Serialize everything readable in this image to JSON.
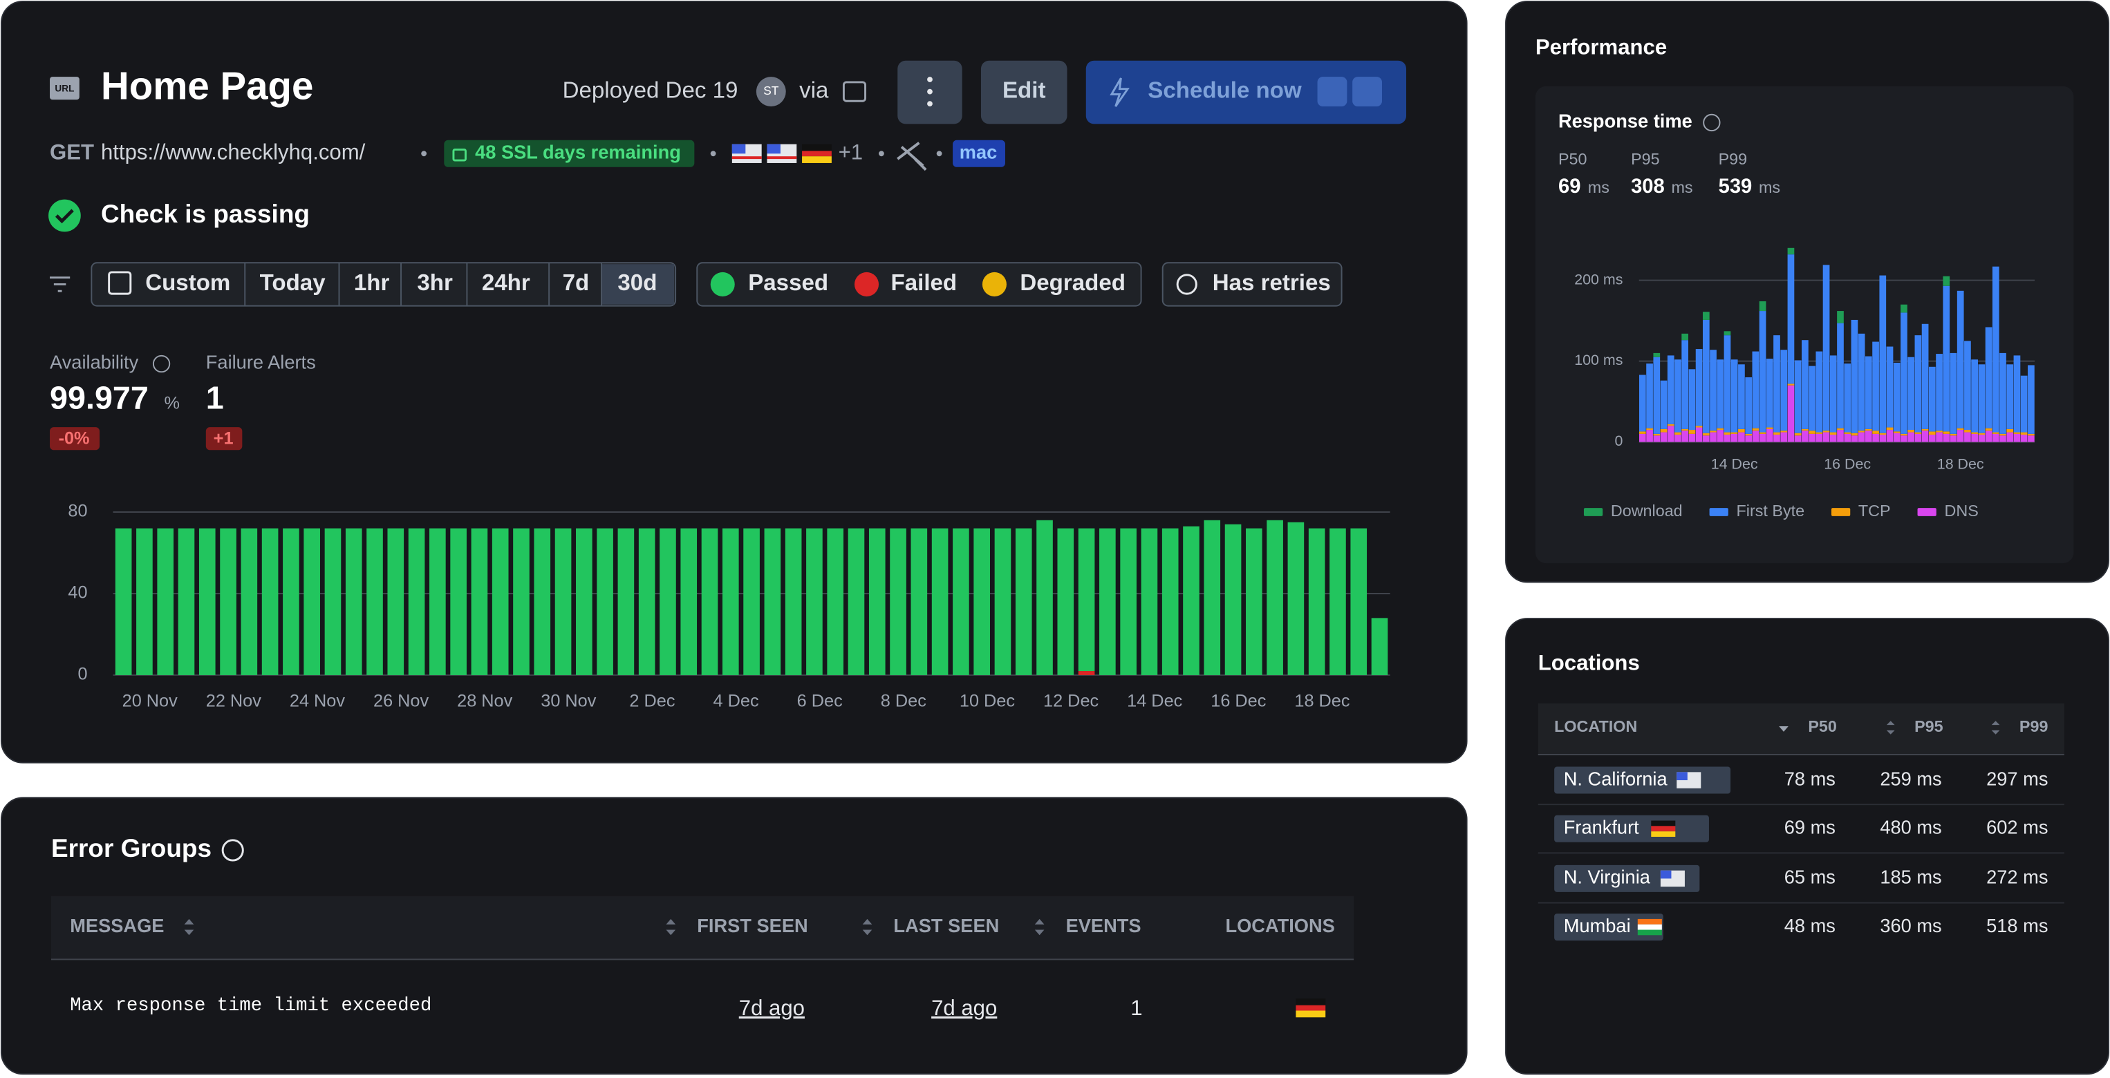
{
  "header": {
    "icon": "URL",
    "title": "Home Page",
    "deployed": "Deployed Dec 19",
    "avatar": "ST",
    "via": "via",
    "edit": "Edit",
    "schedule": "Schedule now"
  },
  "request": {
    "method": "GET",
    "url": "https://www.checklyhq.com/",
    "ssl": "48 SSL days remaining",
    "more_locations": "+1",
    "runtime": "mac"
  },
  "status": "Check is passing",
  "filters": {
    "ranges": [
      "Custom",
      "Today",
      "1hr",
      "3hr",
      "24hr",
      "7d",
      "30d"
    ],
    "results": [
      "Passed",
      "Failed",
      "Degraded"
    ],
    "retries": "Has retries"
  },
  "metrics": [
    {
      "label": "Availability",
      "value": "99.977",
      "unit": "%",
      "change": "-0%"
    },
    {
      "label": "Failure Alerts",
      "value": "1",
      "change": "+1"
    }
  ],
  "performance": {
    "title": "Performance",
    "stats": [
      {
        "label": "P50",
        "value": "69",
        "unit": "ms"
      },
      {
        "label": "P95",
        "value": "308",
        "unit": "ms"
      },
      {
        "label": "P99",
        "value": "539",
        "unit": "ms"
      }
    ]
  },
  "chart_data": [
    {
      "type": "bar",
      "stacked": true,
      "grid": true,
      "categories": [
        null,
        "20 Nov",
        null,
        null,
        null,
        "22 Nov",
        null,
        null,
        null,
        "24 Nov",
        null,
        null,
        null,
        "26 Nov",
        null,
        null,
        null,
        "28 Nov",
        null,
        null,
        null,
        "30 Nov",
        null,
        null,
        null,
        "2 Dec",
        null,
        null,
        null,
        "4 Dec",
        null,
        null,
        null,
        "6 Dec",
        null,
        null,
        null,
        "8 Dec",
        null,
        null,
        null,
        "10 Dec",
        null,
        null,
        null,
        "12 Dec",
        null,
        null,
        null,
        "14 Dec",
        null,
        null,
        null,
        "16 Dec",
        null,
        null,
        null,
        "18 Dec",
        null,
        null,
        null
      ],
      "series": [
        {
          "color": "#22c55e",
          "values": [
            72,
            72,
            72,
            72,
            72,
            72,
            72,
            72,
            72,
            72,
            72,
            72,
            72,
            72,
            72,
            72,
            72,
            72,
            72,
            72,
            72,
            72,
            72,
            72,
            72,
            72,
            72,
            72,
            72,
            72,
            72,
            72,
            72,
            72,
            72,
            72,
            72,
            72,
            72,
            72,
            72,
            72,
            72,
            72,
            76,
            72,
            70,
            72,
            72,
            72,
            72,
            73,
            76,
            74,
            72,
            76,
            75,
            72,
            72,
            72,
            28
          ]
        },
        {
          "color": "#dc2626",
          "values": [
            0,
            0,
            0,
            0,
            0,
            0,
            0,
            0,
            0,
            0,
            0,
            0,
            0,
            0,
            0,
            0,
            0,
            0,
            0,
            0,
            0,
            0,
            0,
            0,
            0,
            0,
            0,
            0,
            0,
            0,
            0,
            0,
            0,
            0,
            0,
            0,
            0,
            0,
            0,
            0,
            0,
            0,
            0,
            0,
            0,
            0,
            2,
            0,
            0,
            0,
            0,
            0,
            0,
            0,
            0,
            0,
            0,
            0,
            0,
            0,
            0
          ]
        }
      ],
      "ylim": [
        0,
        80
      ],
      "yticks": [
        0,
        40,
        80
      ]
    },
    {
      "type": "bar",
      "stacked": true,
      "grid": true,
      "legend": "bottom",
      "title": "Response time",
      "categories": [
        null,
        null,
        null,
        null,
        null,
        null,
        null,
        null,
        null,
        null,
        null,
        null,
        null,
        "14 Dec",
        null,
        null,
        null,
        null,
        null,
        null,
        null,
        null,
        null,
        null,
        null,
        null,
        null,
        null,
        null,
        "16 Dec",
        null,
        null,
        null,
        null,
        null,
        null,
        null,
        null,
        null,
        null,
        null,
        null,
        null,
        null,
        null,
        "18 Dec",
        null,
        null,
        null,
        null,
        null,
        null,
        null,
        null,
        null,
        null
      ],
      "series": [
        {
          "name": "Download",
          "color": "#1f9d55",
          "values": [
            0,
            0,
            5,
            0,
            0,
            0,
            8,
            0,
            0,
            10,
            0,
            0,
            5,
            0,
            0,
            0,
            0,
            12,
            0,
            0,
            0,
            8,
            0,
            0,
            0,
            0,
            0,
            0,
            15,
            0,
            0,
            0,
            0,
            0,
            0,
            0,
            0,
            10,
            0,
            0,
            0,
            0,
            0,
            12,
            0,
            0,
            0,
            0,
            0,
            0,
            0,
            0,
            0,
            0,
            0,
            0
          ]
        },
        {
          "name": "First Byte",
          "color": "#3b82f6",
          "values": [
            70,
            80,
            95,
            60,
            85,
            90,
            110,
            75,
            95,
            140,
            100,
            85,
            120,
            90,
            80,
            70,
            95,
            150,
            85,
            120,
            100,
            160,
            90,
            110,
            80,
            100,
            205,
            95,
            130,
            85,
            140,
            120,
            90,
            110,
            195,
            100,
            85,
            150,
            90,
            120,
            130,
            80,
            95,
            180,
            100,
            170,
            110,
            90,
            85,
            125,
            205,
            100,
            80,
            95,
            70,
            85
          ]
        },
        {
          "name": "TCP",
          "color": "#f59e0b",
          "values": [
            3,
            2,
            2,
            4,
            2,
            3,
            2,
            5,
            2,
            3,
            2,
            2,
            3,
            2,
            4,
            2,
            3,
            2,
            2,
            3,
            2,
            2,
            3,
            2,
            4,
            2,
            2,
            3,
            2,
            2,
            3,
            2,
            2,
            4,
            2,
            3,
            2,
            2,
            3,
            2,
            2,
            4,
            2,
            3,
            2,
            2,
            3,
            2,
            2,
            3,
            2,
            2,
            4,
            2,
            3,
            2
          ]
        },
        {
          "name": "DNS",
          "color": "#d946ef",
          "values": [
            10,
            15,
            8,
            12,
            20,
            9,
            14,
            10,
            18,
            8,
            12,
            15,
            9,
            10,
            12,
            8,
            14,
            10,
            16,
            9,
            12,
            70,
            8,
            14,
            10,
            10,
            12,
            9,
            15,
            10,
            8,
            12,
            14,
            10,
            9,
            15,
            11,
            8,
            12,
            10,
            14,
            9,
            12,
            10,
            8,
            15,
            12,
            10,
            9,
            14,
            10,
            8,
            12,
            10,
            9,
            8
          ]
        }
      ],
      "ylim": [
        0,
        250
      ],
      "yticks": [
        0,
        {
          "value": 100,
          "label": "100 ms"
        },
        {
          "value": 200,
          "label": "200 ms"
        }
      ]
    }
  ],
  "error_groups": {
    "title": "Error Groups",
    "columns": [
      "MESSAGE",
      "FIRST SEEN",
      "LAST SEEN",
      "EVENTS",
      "LOCATIONS"
    ],
    "rows": [
      [
        "Max response time limit exceeded",
        "7d ago",
        "7d ago",
        "1"
      ]
    ]
  },
  "locations": {
    "title": "Locations",
    "columns": [
      "LOCATION",
      "P50",
      "P95",
      "P99"
    ],
    "rows": [
      [
        "N. California",
        "78 ms",
        "259 ms",
        "297 ms"
      ],
      [
        "Frankfurt",
        "69 ms",
        "480 ms",
        "602 ms"
      ],
      [
        "N. Virginia",
        "65 ms",
        "185 ms",
        "272 ms"
      ],
      [
        "Mumbai",
        "48 ms",
        "360 ms",
        "518 ms"
      ]
    ]
  }
}
